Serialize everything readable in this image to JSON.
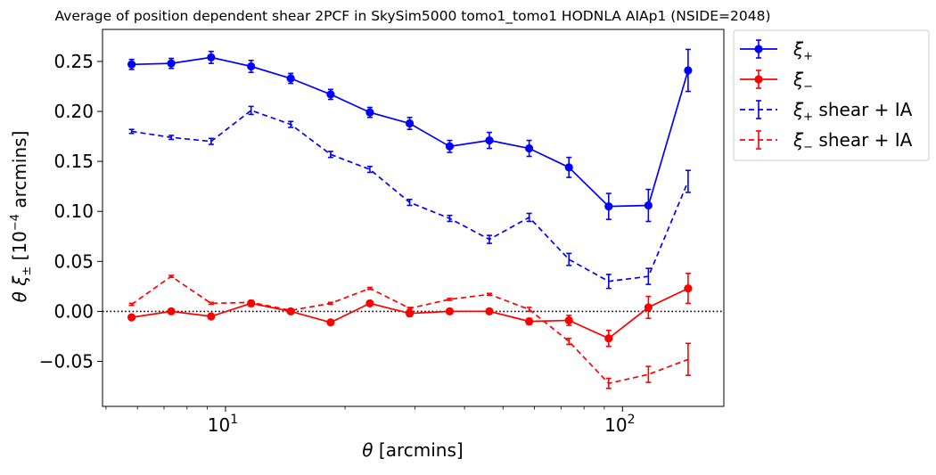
{
  "chart_data": {
    "type": "line",
    "title": "Average of position dependent shear 2PCF in SkySim5000 tomo1_tomo1 HODNLA AIAp1 (NSIDE=2048)",
    "xlabel": "θ [arcmins]",
    "ylabel": "θ ξ± [10⁻⁴ arcmins]",
    "xscale": "log",
    "xlim": [
      4.9,
      180
    ],
    "ylim": [
      -0.095,
      0.282
    ],
    "x_ticks": [
      {
        "value": 10,
        "label": "10",
        "base": "10",
        "exp": "1"
      },
      {
        "value": 100,
        "label": "10²",
        "base": "10",
        "exp": "2"
      }
    ],
    "y_ticks": [
      {
        "value": 0.25,
        "label": "0.25"
      },
      {
        "value": 0.2,
        "label": "0.20"
      },
      {
        "value": 0.15,
        "label": "0.15"
      },
      {
        "value": 0.1,
        "label": "0.10"
      },
      {
        "value": 0.05,
        "label": "0.05"
      },
      {
        "value": 0.0,
        "label": "0.00"
      },
      {
        "value": -0.05,
        "label": "−0.05"
      }
    ],
    "reference_line": {
      "y": 0,
      "style": "dotted",
      "color": "#000000"
    },
    "x": [
      5.8,
      7.3,
      9.2,
      11.6,
      14.6,
      18.4,
      23.1,
      29.1,
      36.7,
      46.2,
      58.2,
      73.3,
      92.3,
      116.2,
      146.3
    ],
    "series": [
      {
        "name": "ξ+",
        "name_base": "ξ",
        "name_sub": "+",
        "name_suffix": "",
        "color": "#0000ff",
        "style": "solid",
        "marker": "circle",
        "values": [
          0.247,
          0.248,
          0.254,
          0.245,
          0.233,
          0.217,
          0.199,
          0.188,
          0.165,
          0.171,
          0.163,
          0.144,
          0.105,
          0.106,
          0.241
        ],
        "errors": [
          0.005,
          0.005,
          0.006,
          0.006,
          0.005,
          0.005,
          0.005,
          0.006,
          0.006,
          0.008,
          0.008,
          0.01,
          0.013,
          0.016,
          0.021
        ]
      },
      {
        "name": "ξ−",
        "name_base": "ξ",
        "name_sub": "−",
        "name_suffix": "",
        "color": "#ff0000",
        "style": "solid",
        "marker": "circle",
        "values": [
          -0.006,
          0.0,
          -0.005,
          0.008,
          0.0,
          -0.011,
          0.008,
          -0.002,
          0.0,
          0.0,
          -0.01,
          -0.009,
          -0.027,
          0.004,
          0.023
        ],
        "errors": [
          0.002,
          0.002,
          0.002,
          0.003,
          0.002,
          0.002,
          0.002,
          0.003,
          0.002,
          0.002,
          0.003,
          0.005,
          0.008,
          0.011,
          0.015
        ]
      },
      {
        "name": "ξ+ shear + IA",
        "name_base": "ξ",
        "name_sub": "+",
        "name_suffix": " shear + IA",
        "color": "#0000ff",
        "style": "dashed",
        "marker": "none",
        "values": [
          0.18,
          0.174,
          0.17,
          0.201,
          0.187,
          0.157,
          0.142,
          0.109,
          0.093,
          0.072,
          0.094,
          0.052,
          0.03,
          0.035,
          0.13
        ],
        "errors": [
          0.002,
          0.002,
          0.003,
          0.004,
          0.003,
          0.003,
          0.003,
          0.003,
          0.003,
          0.004,
          0.004,
          0.006,
          0.007,
          0.008,
          0.011
        ]
      },
      {
        "name": "ξ− shear + IA",
        "name_base": "ξ",
        "name_sub": "−",
        "name_suffix": " shear + IA",
        "color": "#ff0000",
        "style": "dashed",
        "marker": "none",
        "values": [
          0.007,
          0.035,
          0.008,
          0.009,
          0.001,
          0.008,
          0.023,
          0.003,
          0.012,
          0.017,
          0.002,
          -0.03,
          -0.072,
          -0.063,
          -0.048
        ],
        "errors": [
          0.001,
          0.001,
          0.001,
          0.001,
          0.001,
          0.001,
          0.001,
          0.001,
          0.001,
          0.001,
          0.002,
          0.003,
          0.005,
          0.008,
          0.016
        ]
      }
    ],
    "legend": {
      "position": "outside-right-top"
    }
  }
}
